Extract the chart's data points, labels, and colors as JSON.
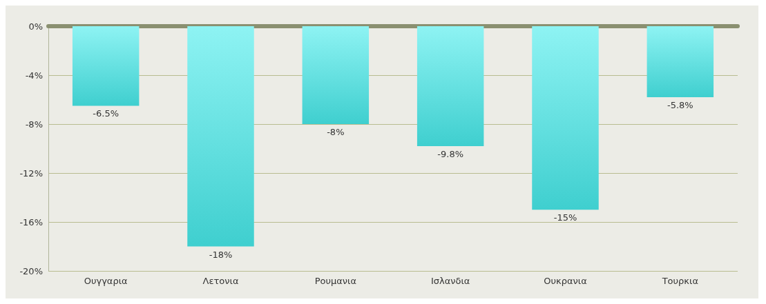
{
  "chart_data": {
    "type": "bar",
    "categories": [
      "Ουγγαρια",
      "Λετονια",
      "Ρουμανια",
      "Ισλανδια",
      "Ουκρανια",
      "Τουρκια"
    ],
    "values": [
      -6.5,
      -18,
      -8,
      -9.8,
      -15,
      -5.8
    ],
    "value_labels": [
      "-6.5%",
      "-18%",
      "-8%",
      "-9.8%",
      "-15%",
      "-5.8%"
    ],
    "color": "#3fcfcf",
    "ylim": [
      -20,
      0
    ],
    "yticks": [
      {
        "value": 0,
        "label": "0%"
      },
      {
        "value": -4,
        "label": "-4%"
      },
      {
        "value": -8,
        "label": "-8%"
      },
      {
        "value": -12,
        "label": "-12%"
      },
      {
        "value": -16,
        "label": "-16%"
      },
      {
        "value": -20,
        "label": "-20%"
      }
    ],
    "grid": true
  }
}
